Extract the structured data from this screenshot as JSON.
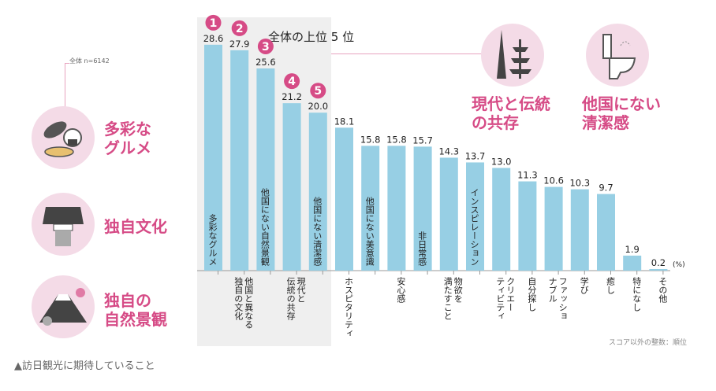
{
  "header": {
    "title": "全体の上位 5 位",
    "sample": "全体 n=6142"
  },
  "left_callouts": [
    {
      "label": "多彩な\nグルメ",
      "icon": "food-icon"
    },
    {
      "label": "独自文化",
      "icon": "kimono-icon"
    },
    {
      "label": "独自の\n自然景観",
      "icon": "mount-fuji-icon"
    }
  ],
  "right_callouts": [
    {
      "label": "現代と伝統\nの共存",
      "icon": "tower-pagoda-icon"
    },
    {
      "label": "他国にない\n清潔感",
      "icon": "toilet-icon"
    }
  ],
  "footer": {
    "caption": "▲訪日観光に期待していること",
    "note": "スコア以外の整数：順位"
  },
  "colors": {
    "bar": "#97cfe4",
    "accent": "#d64b86",
    "circle": "#f4dbe7",
    "highlight": "#efefef"
  },
  "chart_data": {
    "type": "bar",
    "unit": "(%)",
    "categories": [
      "多彩なグルメ",
      "他国と異なる\n独自の文化",
      "他国にない自然景観",
      "現代と\n伝統の共存",
      "他国にない清潔感",
      "ホスピタリティ",
      "他国にない美意識",
      "安心感",
      "非日常感",
      "物欲を\n満たすこと",
      "インスピレーション",
      "クリエー\nティビティ",
      "自分探し",
      "ファッショ\nナブル",
      "学び",
      "癒し",
      "特になし",
      "その他"
    ],
    "label_inside": [
      true,
      false,
      true,
      false,
      true,
      false,
      true,
      false,
      true,
      false,
      true,
      false,
      false,
      false,
      false,
      false,
      false,
      false
    ],
    "values": [
      28.6,
      27.9,
      25.6,
      21.2,
      20.0,
      18.1,
      15.8,
      15.8,
      15.7,
      14.3,
      13.7,
      13.0,
      11.3,
      10.6,
      10.3,
      9.7,
      1.9,
      0.2
    ],
    "value_labels": [
      "28.6",
      "27.9",
      "25.6",
      "21.2",
      "20.0",
      "18.1",
      "15.8",
      "15.8",
      "15.7",
      "14.3",
      "13.7",
      "13.0",
      "11.3",
      "10.6",
      "10.3",
      "9.7",
      "1.9",
      "0.2"
    ],
    "ranks": [
      "1",
      "2",
      "3",
      "4",
      "5"
    ],
    "ylim": [
      0,
      30
    ]
  }
}
